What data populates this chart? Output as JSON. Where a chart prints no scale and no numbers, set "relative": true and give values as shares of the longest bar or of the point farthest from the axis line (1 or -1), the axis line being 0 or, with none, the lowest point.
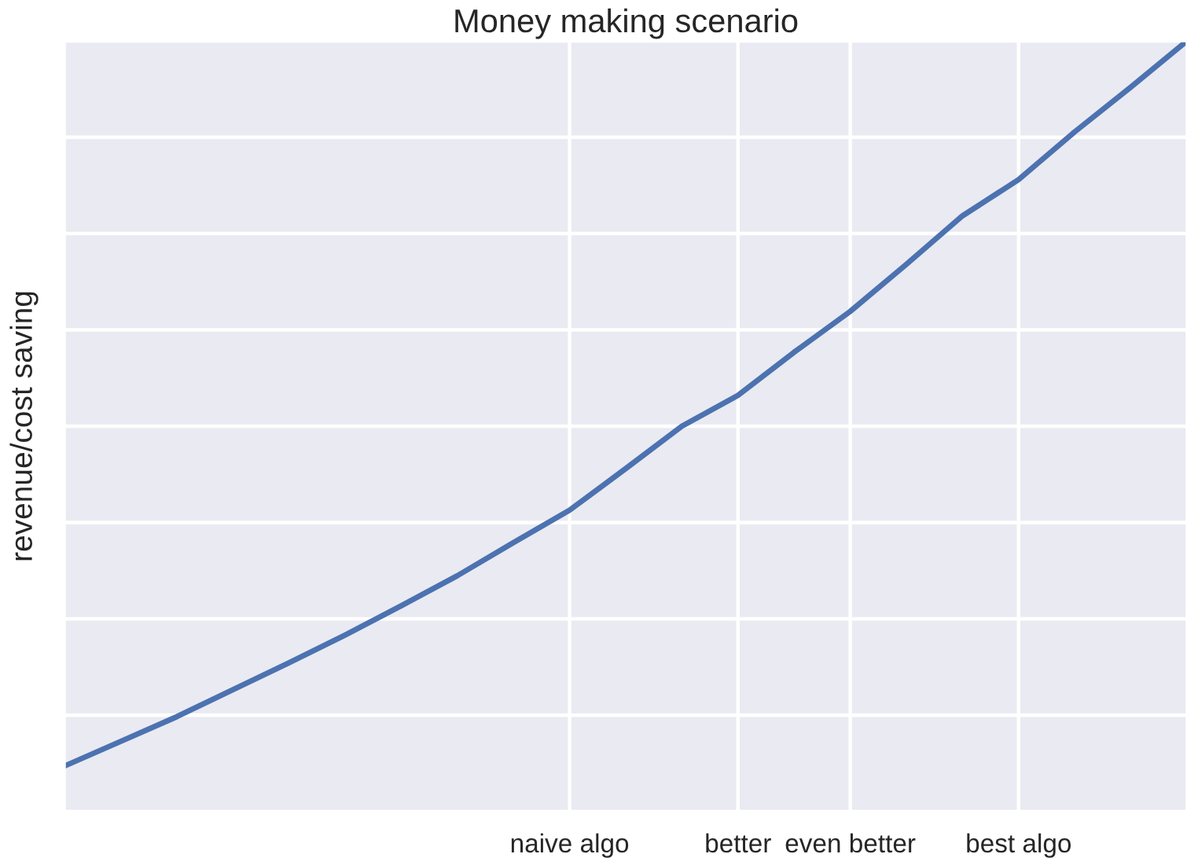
{
  "chart_data": {
    "type": "line",
    "title": "Money making scenario",
    "ylabel": "revenue/cost saving",
    "relative": true,
    "grid": true,
    "legend": false,
    "categories": [
      null,
      null,
      null,
      null,
      null,
      null,
      null,
      null,
      null,
      "naive algo",
      null,
      null,
      "better",
      null,
      "even better",
      null,
      null,
      "best algo",
      null,
      null,
      null
    ],
    "series": [
      {
        "color": "#4c72b0",
        "values": [
          0.059,
          0.091,
          0.123,
          0.158,
          0.193,
          0.229,
          0.267,
          0.306,
          0.349,
          0.391,
          0.445,
          0.5,
          0.54,
          0.596,
          0.649,
          0.71,
          0.773,
          0.82,
          0.882,
          0.94,
          1
        ]
      }
    ]
  }
}
